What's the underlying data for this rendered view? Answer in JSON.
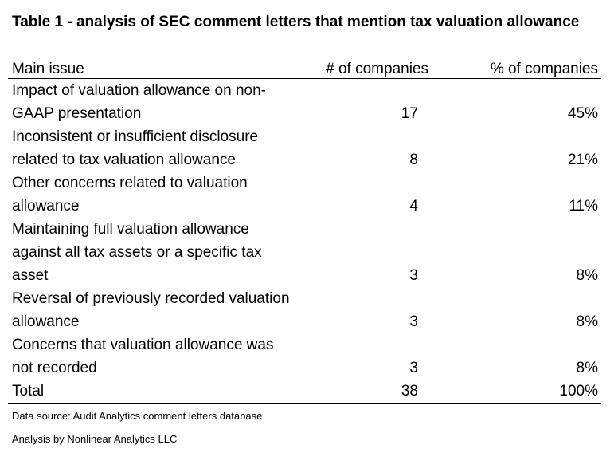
{
  "title": "Table 1 - analysis of SEC comment letters that mention tax valuation allowance",
  "table": {
    "headers": [
      "Main issue",
      "# of companies",
      "% of companies"
    ],
    "rows": [
      {
        "issue": "Impact of valuation allowance on non-GAAP presentation",
        "issue_lines": [
          "Impact of valuation allowance on non-",
          "GAAP presentation"
        ],
        "count": "17",
        "percent": "45%"
      },
      {
        "issue": "Inconsistent or insufficient disclosure related to tax valuation allowance",
        "issue_lines": [
          "Inconsistent or insufficient disclosure",
          "related to tax valuation allowance"
        ],
        "count": "8",
        "percent": "21%"
      },
      {
        "issue": "Other concerns related to valuation allowance",
        "issue_lines": [
          "Other concerns related to valuation",
          "allowance"
        ],
        "count": "4",
        "percent": "11%"
      },
      {
        "issue": "Maintaining full valuation allowance against all tax assets or a specific tax asset",
        "issue_lines": [
          "Maintaining full valuation allowance",
          "against all tax assets or a specific tax",
          "asset"
        ],
        "count": "3",
        "percent": "8%"
      },
      {
        "issue": "Reversal of previously recorded valuation allowance",
        "issue_lines": [
          "Reversal of previously recorded valuation",
          "allowance"
        ],
        "count": "3",
        "percent": "8%"
      },
      {
        "issue": "Concerns that valuation allowance was not recorded",
        "issue_lines": [
          "Concerns that valuation allowance was",
          "not recorded"
        ],
        "count": "3",
        "percent": "8%"
      }
    ],
    "total": {
      "label": "Total",
      "count": "38",
      "percent": "100%"
    }
  },
  "notes": {
    "source": "Data source: Audit Analytics comment letters database",
    "credit": "Analysis by Nonlinear Analytics LLC"
  }
}
